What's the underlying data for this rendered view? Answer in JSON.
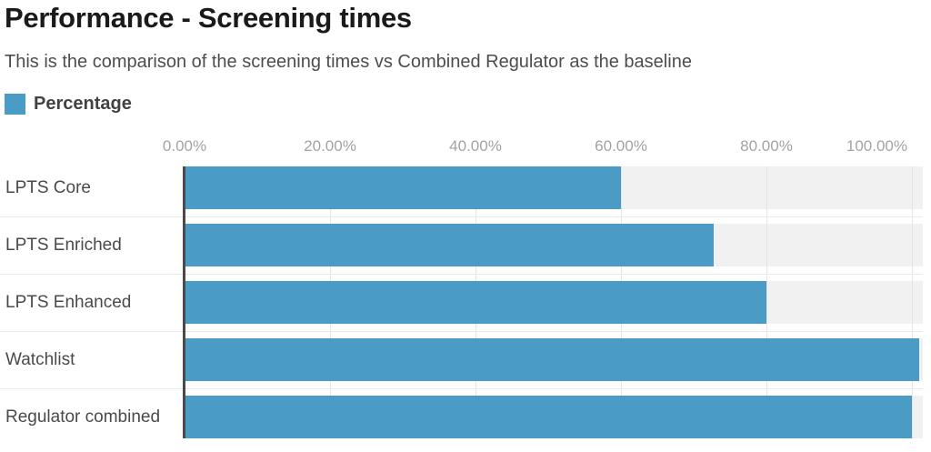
{
  "header": {
    "title": "Performance - Screening times",
    "subtitle": "This is the comparison of the screening times vs Combined Regulator as the baseline"
  },
  "legend": {
    "label": "Percentage"
  },
  "chart_data": {
    "type": "bar",
    "orientation": "horizontal",
    "title": "Performance - Screening times",
    "subtitle": "This is the comparison of the screening times vs Combined Regulator as the baseline",
    "legend_position": "top-left",
    "grid": true,
    "categories": [
      "LPTS Core",
      "LPTS Enriched",
      "LPTS Enhanced",
      "Watchlist",
      "Regulator combined"
    ],
    "series": [
      {
        "name": "Percentage",
        "values": [
          60,
          72.8,
          80,
          101,
          100
        ]
      }
    ],
    "xlabel": "",
    "ylabel": "",
    "x_ticks": [
      {
        "label": "0.00%",
        "value": 0
      },
      {
        "label": "20.00%",
        "value": 20
      },
      {
        "label": "40.00%",
        "value": 40
      },
      {
        "label": "60.00%",
        "value": 60
      },
      {
        "label": "80.00%",
        "value": 80
      },
      {
        "label": "100.00%",
        "value": 100
      }
    ],
    "xlim": [
      0,
      101.5
    ],
    "colors": {
      "bar": "#4a9cc6",
      "track": "#f1f1f1",
      "gridline": "#e4e4e4",
      "separator": "#e9e9e9",
      "axis_line": "#4a4a4a",
      "tick_text": "#a3a3a3",
      "category_text": "#4a4a4a",
      "title_text": "#1a1a1a",
      "subtitle_text": "#4d4d4d",
      "legend_text": "#424242"
    }
  }
}
